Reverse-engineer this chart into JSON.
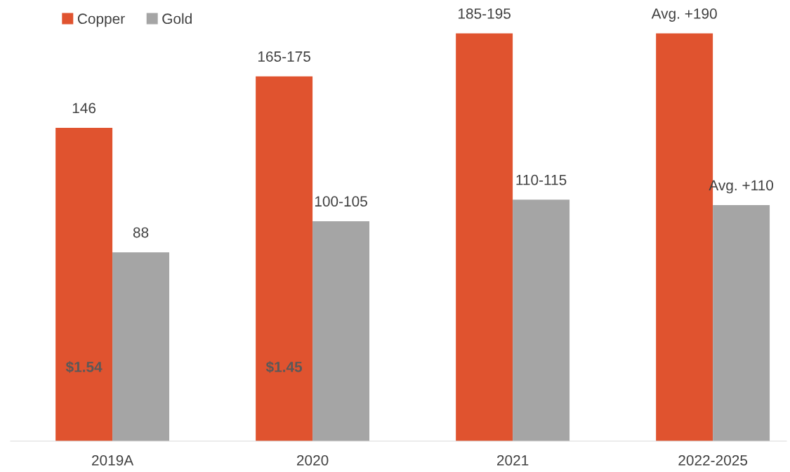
{
  "chart_data": {
    "type": "bar",
    "categories": [
      "2019A",
      "2020",
      "2021",
      "2022-2025"
    ],
    "series": [
      {
        "name": "Copper",
        "color": "#e0532f",
        "values": [
          146,
          170,
          190,
          190
        ],
        "value_labels": [
          "146",
          "165-175",
          "185-195",
          "Avg. +190"
        ]
      },
      {
        "name": "Gold",
        "color": "#a5a5a5",
        "values": [
          88,
          102.5,
          112.5,
          110
        ],
        "value_labels": [
          "88",
          "100-105",
          "110-115",
          "Avg. +110"
        ]
      }
    ],
    "annotations": [
      {
        "text": "$1.54",
        "x": "2019A",
        "y": 34
      },
      {
        "text": "$1.45",
        "x": "2020",
        "y": 34
      }
    ],
    "legend": "top left",
    "grid": false
  }
}
